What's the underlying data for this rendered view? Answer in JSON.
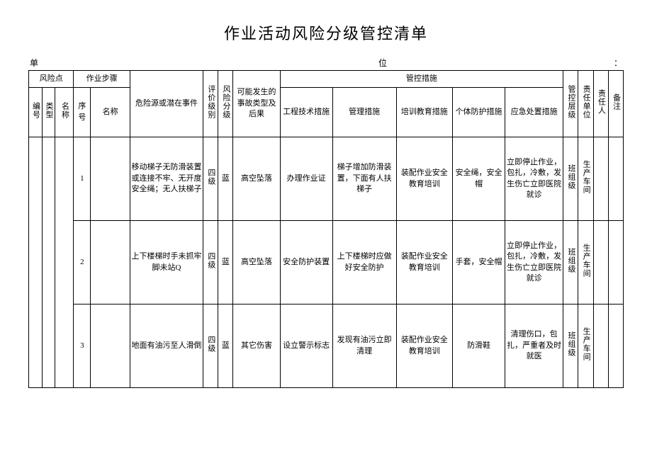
{
  "title": "作业活动风险分级管控清单",
  "unit_label_left": "单",
  "unit_label_right": "位",
  "unit_colon": "：",
  "headers": {
    "risk_point": "风险点",
    "work_step": "作业步骤",
    "num": "编号",
    "type": "类型",
    "name": "名称",
    "seq": "序号",
    "step_name": "名称",
    "hazard": "危险源或潜在事件",
    "eval_level": "评价级别",
    "risk_level": "风险分级",
    "accident": "可能发生的事故类型及后果",
    "control": "管控措施",
    "eng": "工程技术措施",
    "mgmt": "管理措施",
    "train": "培训教育措施",
    "ppe": "个体防护措施",
    "emerg": "应急处置措施",
    "ctrl_level": "管控层级",
    "resp_unit": "责任单位",
    "resp_person": "责任人",
    "remark": "备注"
  },
  "rows": [
    {
      "seq": "1",
      "hazard": "移动梯子无防滑装置或连接不牢、无开度安全绳；无人扶梯子",
      "eval": "四级",
      "risk": "蓝",
      "accident": "高空坠落",
      "eng": "办理作业证",
      "mgmt": "梯子增加防滑装置，下面有人扶梯子",
      "train": "装配作业安全教育培训",
      "ppe": "安全绳，安全帽",
      "emerg": "立即停止作业，包扎，冷敷，发生伤亡立即医院就诊",
      "ctrl": "班组级",
      "unit": "生产车间"
    },
    {
      "seq": "2",
      "hazard": "上下楼梯时手未抓牢脚未站Q",
      "eval": "四级",
      "risk": "蓝",
      "accident": "高空坠落",
      "eng": "安全防护装置",
      "mgmt": "上下楼梯时应做好安全防护",
      "train": "装配作业安全教育培训",
      "ppe": "手套，安全帽",
      "emerg": "立即停止作业，包扎，冷敷，发生伤亡立即医院就诊",
      "ctrl": "班组级",
      "unit": "生产车间"
    },
    {
      "seq": "3",
      "hazard": "地面有油污至人滑倒",
      "eval": "四级",
      "risk": "蓝",
      "accident": "其它伤害",
      "eng": "设立警示标志",
      "mgmt": "发现有油污立即清理",
      "train": "装配作业安全教育培训",
      "ppe": "防滑鞋",
      "emerg": "清理伤口，包扎，严重者及时就医",
      "ctrl": "班组级",
      "unit": "生产车间"
    }
  ]
}
